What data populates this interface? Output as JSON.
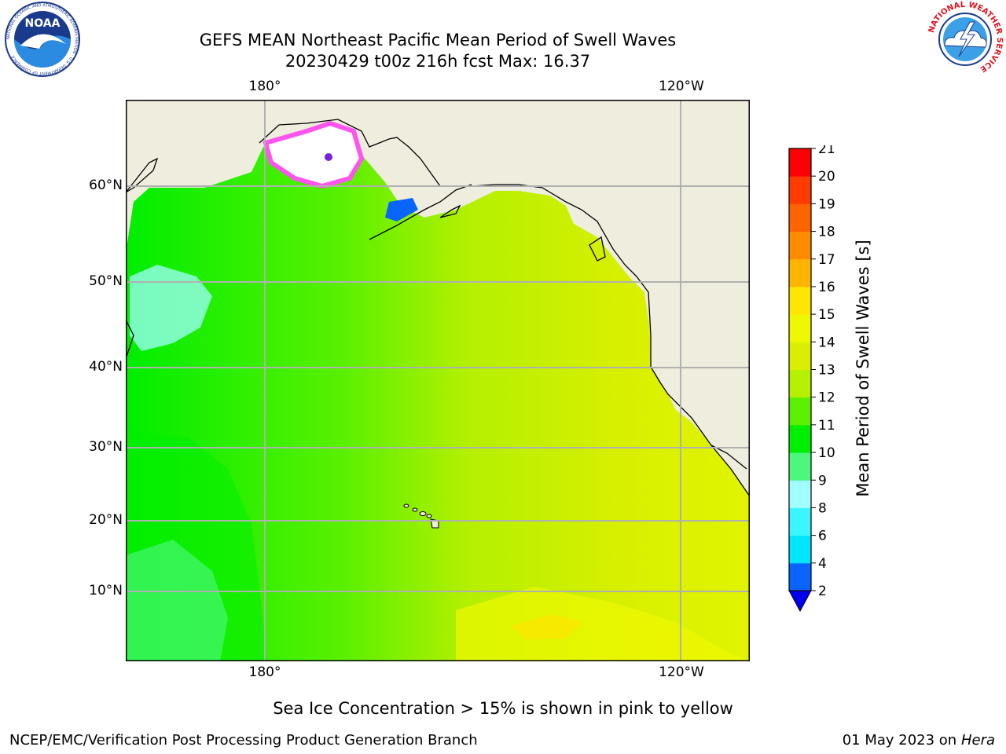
{
  "header": {
    "title_line1": "GEFS MEAN Northeast Pacific Mean Period of Swell Waves",
    "title_line2": "20230429 t00z 216h fcst   Max: 16.37"
  },
  "logos": {
    "noaa_text": "NOAA",
    "noaa_ring": "NATIONAL OCEANIC AND ATMOSPHERIC ADMINISTRATION · U.S. DEPARTMENT OF COMMERCE",
    "nws_ring": "NATIONAL WEATHER SERVICE"
  },
  "map": {
    "lon_labels": [
      "180°",
      "120°W"
    ],
    "lat_labels": [
      "60°N",
      "50°N",
      "40°N",
      "30°N",
      "20°N",
      "10°N"
    ],
    "land_color": "#efedde",
    "grid_color": "#b0b0b0"
  },
  "colorbar": {
    "label": "Mean Period of Swell Waves [s]",
    "ticks": [
      "2",
      "4",
      "6",
      "8",
      "9",
      "10",
      "11",
      "12",
      "13",
      "14",
      "15",
      "16",
      "17",
      "18",
      "19",
      "20",
      "21"
    ],
    "colors": [
      "#0a64ff",
      "#00e6ff",
      "#3cf6ff",
      "#a0ffff",
      "#4cf77c",
      "#00ee00",
      "#5af000",
      "#b4f000",
      "#d8f000",
      "#eef800",
      "#ffe600",
      "#ffb400",
      "#ff8c00",
      "#ff6400",
      "#ff3c00",
      "#ff0000"
    ],
    "extend_color": "#0000ee"
  },
  "footer": {
    "ice_note": "Sea Ice Concentration > 15% is shown in pink to yellow",
    "credit": "NCEP/EMC/Verification Post Processing Product Generation Branch",
    "date": "01 May 2023 on",
    "host": "Hera"
  }
}
